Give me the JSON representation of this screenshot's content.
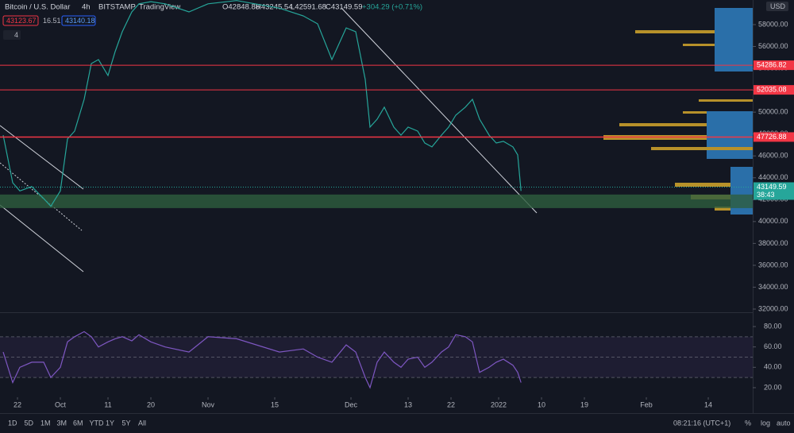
{
  "header": {
    "symbol": "Bitcoin / U.S. Dollar",
    "interval": "4h",
    "exchange": "BITSTAMP",
    "brand": "TradingView",
    "open": "O42848.88",
    "high": "H43245.54",
    "low": "L42591.68",
    "close": "C43149.59",
    "change": "+304.29 (+0.71%)",
    "sell": 43123.67,
    "spread": 16.51,
    "buy": 43140.18,
    "indicators": 4,
    "currency": "USD"
  },
  "chart_data": [
    {
      "type": "line",
      "name": "price",
      "color": "#26a69a",
      "x": [
        -3,
        -1,
        0.5,
        3,
        5.5,
        7,
        9,
        10.5,
        12,
        14,
        15.5,
        17,
        19,
        20.5,
        22,
        24,
        25.5,
        28,
        31,
        36,
        40,
        46,
        55,
        60,
        63,
        66,
        69,
        71,
        73,
        74,
        75.5,
        77,
        79,
        80.5,
        82,
        84,
        85.5,
        87,
        89,
        90.5,
        92,
        94,
        95.5,
        97,
        99,
        100.5,
        102,
        104,
        105,
        105.7
      ],
      "values": [
        47900,
        43550,
        42800,
        43200,
        42100,
        41400,
        42800,
        47550,
        48270,
        51170,
        54440,
        54800,
        53350,
        55530,
        57350,
        59160,
        59900,
        60100,
        59900,
        59160,
        59900,
        60200,
        59500,
        58800,
        58070,
        54800,
        57700,
        57350,
        52990,
        48630,
        49360,
        50450,
        48630,
        47900,
        48630,
        48270,
        47180,
        46820,
        47900,
        48630,
        49720,
        50450,
        51170,
        49360,
        47900,
        47180,
        47330,
        46820,
        46090,
        42800
      ],
      "xlim": [
        -3.67,
        154.33
      ],
      "ylim": [
        31710,
        60250
      ],
      "xticks": [
        {
          "value": 0,
          "label": "22"
        },
        {
          "value": 9,
          "label": "Oct"
        },
        {
          "value": 19,
          "label": "11"
        },
        {
          "value": 28,
          "label": "20"
        },
        {
          "value": 40,
          "label": "Nov"
        },
        {
          "value": 54,
          "label": "15"
        },
        {
          "value": 70,
          "label": "Dec"
        },
        {
          "value": 82,
          "label": "13"
        },
        {
          "value": 91,
          "label": "22"
        },
        {
          "value": 101,
          "label": "2022"
        },
        {
          "value": 110,
          "label": "10"
        },
        {
          "value": 119,
          "label": "19"
        },
        {
          "value": 132,
          "label": "Feb"
        },
        {
          "value": 145,
          "label": "14"
        }
      ],
      "yticks": [
        {
          "value": 32000,
          "label": "32000.00"
        },
        {
          "value": 34000,
          "label": "34000.00"
        },
        {
          "value": 36000,
          "label": "36000.00"
        },
        {
          "value": 38000,
          "label": "38000.00"
        },
        {
          "value": 40000,
          "label": "40000.00"
        },
        {
          "value": 42000,
          "label": "42000.00"
        },
        {
          "value": 44000,
          "label": "44000.00"
        },
        {
          "value": 46000,
          "label": "46000.00"
        },
        {
          "value": 48000,
          "label": "48000.00"
        },
        {
          "value": 50000,
          "label": "50000.00"
        },
        {
          "value": 52000,
          "label": "52000.00"
        },
        {
          "value": 54000,
          "label": "54000.00"
        },
        {
          "value": 56000,
          "label": "56000.00"
        },
        {
          "value": 58000,
          "label": "58000.00"
        }
      ],
      "levels": [
        54286.82,
        52035.08,
        47726.88
      ],
      "level_color": "#f23645",
      "last_price": 43149.59,
      "countdown": "38:43",
      "last_color": "#26a69a",
      "zone": [
        41230,
        42470
      ],
      "zone_color": "#2e5e3e"
    },
    {
      "type": "line",
      "name": "RSI",
      "color": "#7e57c2",
      "x": [
        -3,
        -1,
        0.5,
        3,
        5.5,
        7,
        9,
        10.5,
        12,
        14,
        15.5,
        17,
        19,
        20.5,
        22,
        24,
        25.5,
        28,
        31,
        36,
        40,
        46,
        55,
        60,
        63,
        66,
        69,
        71,
        73,
        74,
        75.5,
        77,
        79,
        80.5,
        82,
        84,
        85.5,
        87,
        89,
        90.5,
        92,
        94,
        95.5,
        97,
        99,
        100.5,
        102,
        104,
        105,
        105.7
      ],
      "values": [
        55,
        25,
        40,
        45,
        45,
        30,
        40,
        65,
        70,
        75,
        70,
        60,
        65,
        68,
        70,
        66,
        72,
        65,
        60,
        55,
        70,
        68,
        55,
        58,
        50,
        45,
        62,
        55,
        30,
        20,
        45,
        55,
        45,
        40,
        48,
        50,
        40,
        45,
        55,
        60,
        72,
        70,
        65,
        35,
        40,
        45,
        48,
        42,
        35,
        25
      ],
      "ylim": [
        10.6,
        92.5
      ],
      "yticks": [
        {
          "value": 20,
          "label": "20.00"
        },
        {
          "value": 40,
          "label": "40.00"
        },
        {
          "value": 60,
          "label": "60.00"
        },
        {
          "value": 80,
          "label": "80.00"
        }
      ],
      "bands": [
        30,
        50,
        70
      ]
    }
  ],
  "toolbar": {
    "ranges": [
      "1D",
      "5D",
      "1M",
      "3M",
      "6M",
      "YTD",
      "1Y",
      "5Y",
      "All"
    ],
    "time": "08:21:16 (UTC+1)",
    "options": [
      "%",
      "log",
      "auto"
    ]
  }
}
